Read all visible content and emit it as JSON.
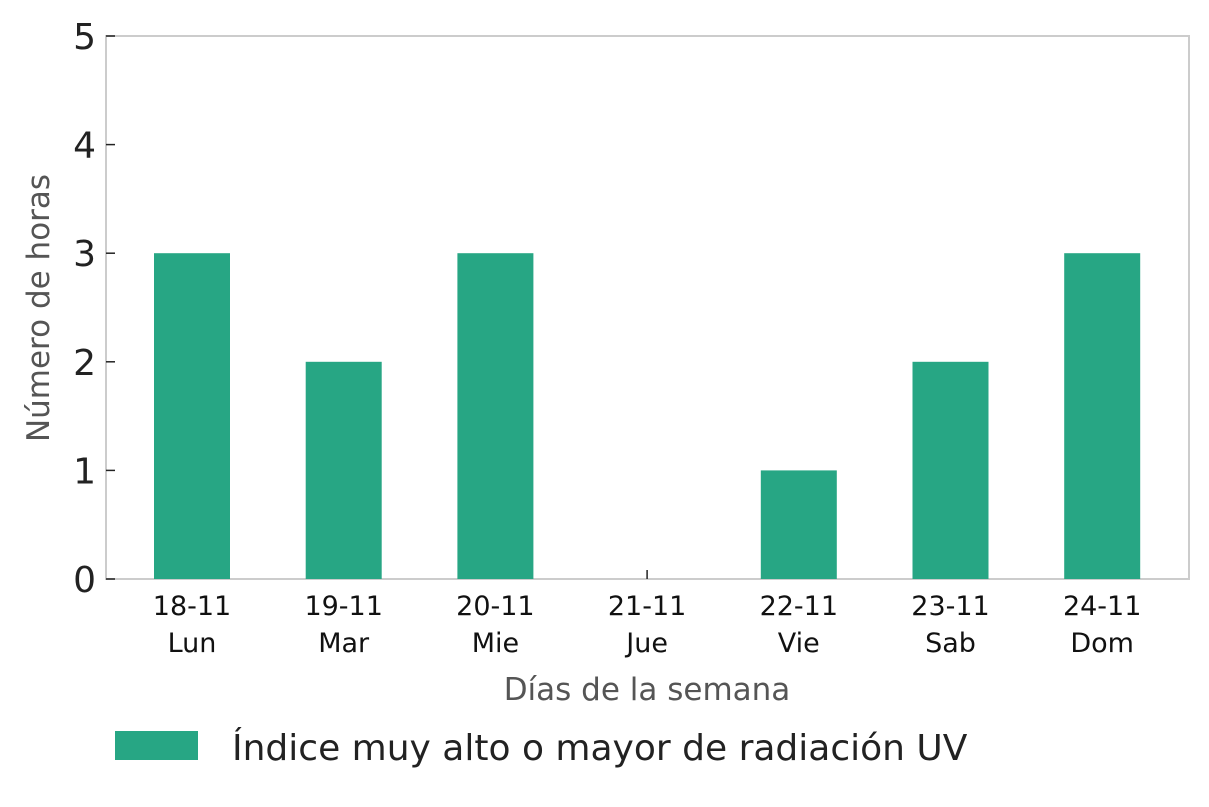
{
  "chart_data": {
    "type": "bar",
    "categories": [
      [
        "18-11",
        "Lun"
      ],
      [
        "19-11",
        "Mar"
      ],
      [
        "20-11",
        "Mie"
      ],
      [
        "21-11",
        "Jue"
      ],
      [
        "22-11",
        "Vie"
      ],
      [
        "23-11",
        "Sab"
      ],
      [
        "24-11",
        "Dom"
      ]
    ],
    "series": [
      {
        "name": "Índice muy alto o mayor de radiación UV",
        "color": "#27a684",
        "values": [
          3,
          2,
          3,
          0,
          1,
          2,
          3
        ]
      }
    ],
    "xlabel": "Días de la semana",
    "ylabel": "Número de horas",
    "ylim": [
      0,
      5
    ],
    "yticks": [
      "0",
      "1",
      "2",
      "3",
      "4",
      "5"
    ],
    "grid": false,
    "legend": "bottom-left"
  }
}
